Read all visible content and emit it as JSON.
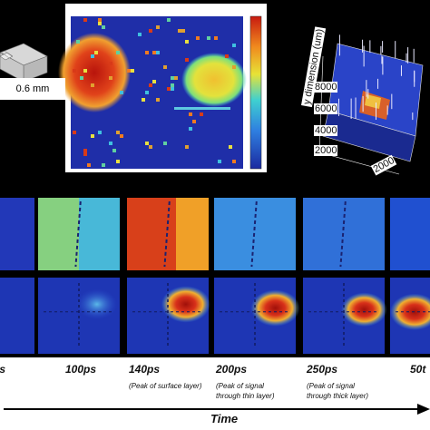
{
  "thickness_label": "0.6 mm",
  "plot3d": {
    "axis_label": "y dimension (um)",
    "ticks": [
      "8000",
      "6000",
      "4000",
      "2000",
      "2000"
    ]
  },
  "frames": [
    {
      "time": "ps",
      "note": [
        "",
        ""
      ]
    },
    {
      "time": "100ps",
      "note": [
        "",
        ""
      ]
    },
    {
      "time": "140ps",
      "note": [
        "(Peak of surface layer)",
        ""
      ]
    },
    {
      "time": "200ps",
      "note": [
        "(Peak of signal",
        "through thin layer)"
      ]
    },
    {
      "time": "250ps",
      "note": [
        "(Peak of signal",
        "through thick layer)"
      ]
    },
    {
      "time": "50t",
      "note": [
        "",
        ""
      ]
    }
  ],
  "time_axis_label": "Time",
  "colors": {
    "panel_bg": "#000000",
    "map_blue": "#1e2fa8",
    "hot_red": "#d42a10",
    "hot_yellow": "#e9dc3a",
    "cyan": "#3fb6e0"
  }
}
